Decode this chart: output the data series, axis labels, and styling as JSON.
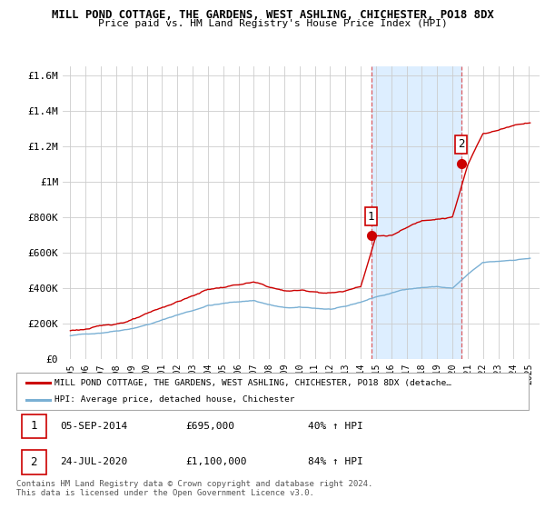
{
  "title1": "MILL POND COTTAGE, THE GARDENS, WEST ASHLING, CHICHESTER, PO18 8DX",
  "title2": "Price paid vs. HM Land Registry's House Price Index (HPI)",
  "property_color": "#cc0000",
  "hpi_color": "#7ab0d4",
  "background_color": "#ffffff",
  "shaded_region_color": "#ddeeff",
  "sale1_date_num": 2014.68,
  "sale2_date_num": 2020.56,
  "sale1_price": 695000,
  "sale2_price": 1100000,
  "sale1_label": "1",
  "sale2_label": "2",
  "sale1_date_str": "05-SEP-2014",
  "sale1_price_str": "£695,000",
  "sale1_pct": "40% ↑ HPI",
  "sale2_date_str": "24-JUL-2020",
  "sale2_price_str": "£1,100,000",
  "sale2_pct": "84% ↑ HPI",
  "legend1": "MILL POND COTTAGE, THE GARDENS, WEST ASHLING, CHICHESTER, PO18 8DX (detache…",
  "legend2": "HPI: Average price, detached house, Chichester",
  "footnote": "Contains HM Land Registry data © Crown copyright and database right 2024.\nThis data is licensed under the Open Government Licence v3.0.",
  "ylim": [
    0,
    1650000
  ],
  "yticks": [
    0,
    200000,
    400000,
    600000,
    800000,
    1000000,
    1200000,
    1400000,
    1600000
  ],
  "ytick_labels": [
    "£0",
    "£200K",
    "£400K",
    "£600K",
    "£800K",
    "£1M",
    "£1.2M",
    "£1.4M",
    "£1.6M"
  ],
  "xlim_start": 1994.5,
  "xlim_end": 2025.7
}
